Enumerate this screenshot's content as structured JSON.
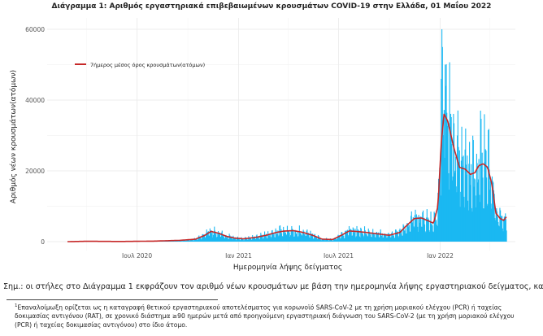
{
  "chart_data": {
    "type": "bar",
    "title": "Διάγραμμα 1: Αριθμός εργαστηριακά επιβεβαιωμένων κρουσμάτων COVID-19 στην Ελλάδα, 01 Μαΐου 2022",
    "xlabel": "Ημερομηνία λήψης δείγματος",
    "ylabel": "Αριθμός νέων κρουσμάτων(ατόμων)",
    "x_range": [
      "2020-02-26",
      "2022-05-01"
    ],
    "ylim": [
      0,
      60000
    ],
    "yticks": [
      "0",
      "20000",
      "40000",
      "60000"
    ],
    "xticks": [
      {
        "date": "2020-07-01",
        "label": "Ιουλ 2020"
      },
      {
        "date": "2021-01-01",
        "label": "Ιαν 2021"
      },
      {
        "date": "2021-07-01",
        "label": "Ιουλ 2021"
      },
      {
        "date": "2022-01-01",
        "label": "Ιαν 2022"
      }
    ],
    "grid": true,
    "legend_position": "top-left",
    "colors": {
      "bars": "#1ab8f2",
      "line": "#c62828",
      "grid": "#ececec",
      "axis_text": "#555555"
    },
    "series": [
      {
        "type": "bar",
        "description": "daily new confirmed cases by sample date",
        "values_note": "daily values fluctuate around the 7-day average; peak about 60000 in early January 2022"
      },
      {
        "type": "line",
        "name": "7ήμερος μέσος όρος κρουσμάτων(ατόμων)",
        "x": [
          "2020-02-26",
          "2020-04-01",
          "2020-06-01",
          "2020-08-01",
          "2020-09-15",
          "2020-10-15",
          "2020-11-01",
          "2020-11-12",
          "2020-11-25",
          "2020-12-10",
          "2020-12-25",
          "2021-01-10",
          "2021-02-01",
          "2021-02-20",
          "2021-03-10",
          "2021-03-25",
          "2021-04-10",
          "2021-04-25",
          "2021-05-15",
          "2021-06-01",
          "2021-06-20",
          "2021-07-05",
          "2021-07-20",
          "2021-08-01",
          "2021-08-20",
          "2021-09-10",
          "2021-10-01",
          "2021-10-20",
          "2021-11-01",
          "2021-11-15",
          "2021-11-28",
          "2021-12-10",
          "2021-12-20",
          "2021-12-28",
          "2022-01-03",
          "2022-01-08",
          "2022-01-15",
          "2022-01-25",
          "2022-02-05",
          "2022-02-15",
          "2022-02-25",
          "2022-03-05",
          "2022-03-12",
          "2022-03-20",
          "2022-03-28",
          "2022-04-05",
          "2022-04-12",
          "2022-04-20",
          "2022-04-26",
          "2022-05-01"
        ],
        "y": [
          0,
          100,
          40,
          150,
          350,
          700,
          1800,
          2900,
          2400,
          1500,
          1000,
          800,
          1200,
          1800,
          2600,
          3000,
          3100,
          2700,
          1800,
          700,
          600,
          1700,
          3000,
          2900,
          2600,
          2200,
          1800,
          2600,
          4500,
          6500,
          6700,
          5900,
          5200,
          10000,
          28000,
          36000,
          34000,
          27000,
          21000,
          20500,
          19000,
          19500,
          21500,
          22000,
          21000,
          16000,
          8000,
          6500,
          6000,
          7000
        ]
      }
    ]
  },
  "note": "Σημ.: οι στήλες στο Διάγραμμα 1 εκφράζουν τον αριθμό νέων κρουσμάτων με βάση την ημερομηνία λήψης εργαστηριακού δείγματος, και όχι",
  "footnote": {
    "mark": "1",
    "lines": [
      "Επαναλοίμωξη ορίζεται ως η καταγραφή θετικού εργαστηριακού αποτελέσματος για κορωνοϊό SARS-CoV-2 με τη χρήση μοριακού ελέγχου (PCR) ή ταχείας",
      "δοκιμασίας αντιγόνου (RAT), σε χρονικό διάστημα ≥90 ημερών μετά από προηγούμενη εργαστηριακή διάγνωση του SARS-CoV-2 (με τη χρήση μοριακού ελέγχου",
      "(PCR) ή ταχείας δοκιμασίας αντιγόνου) στο ίδιο άτομο."
    ]
  }
}
